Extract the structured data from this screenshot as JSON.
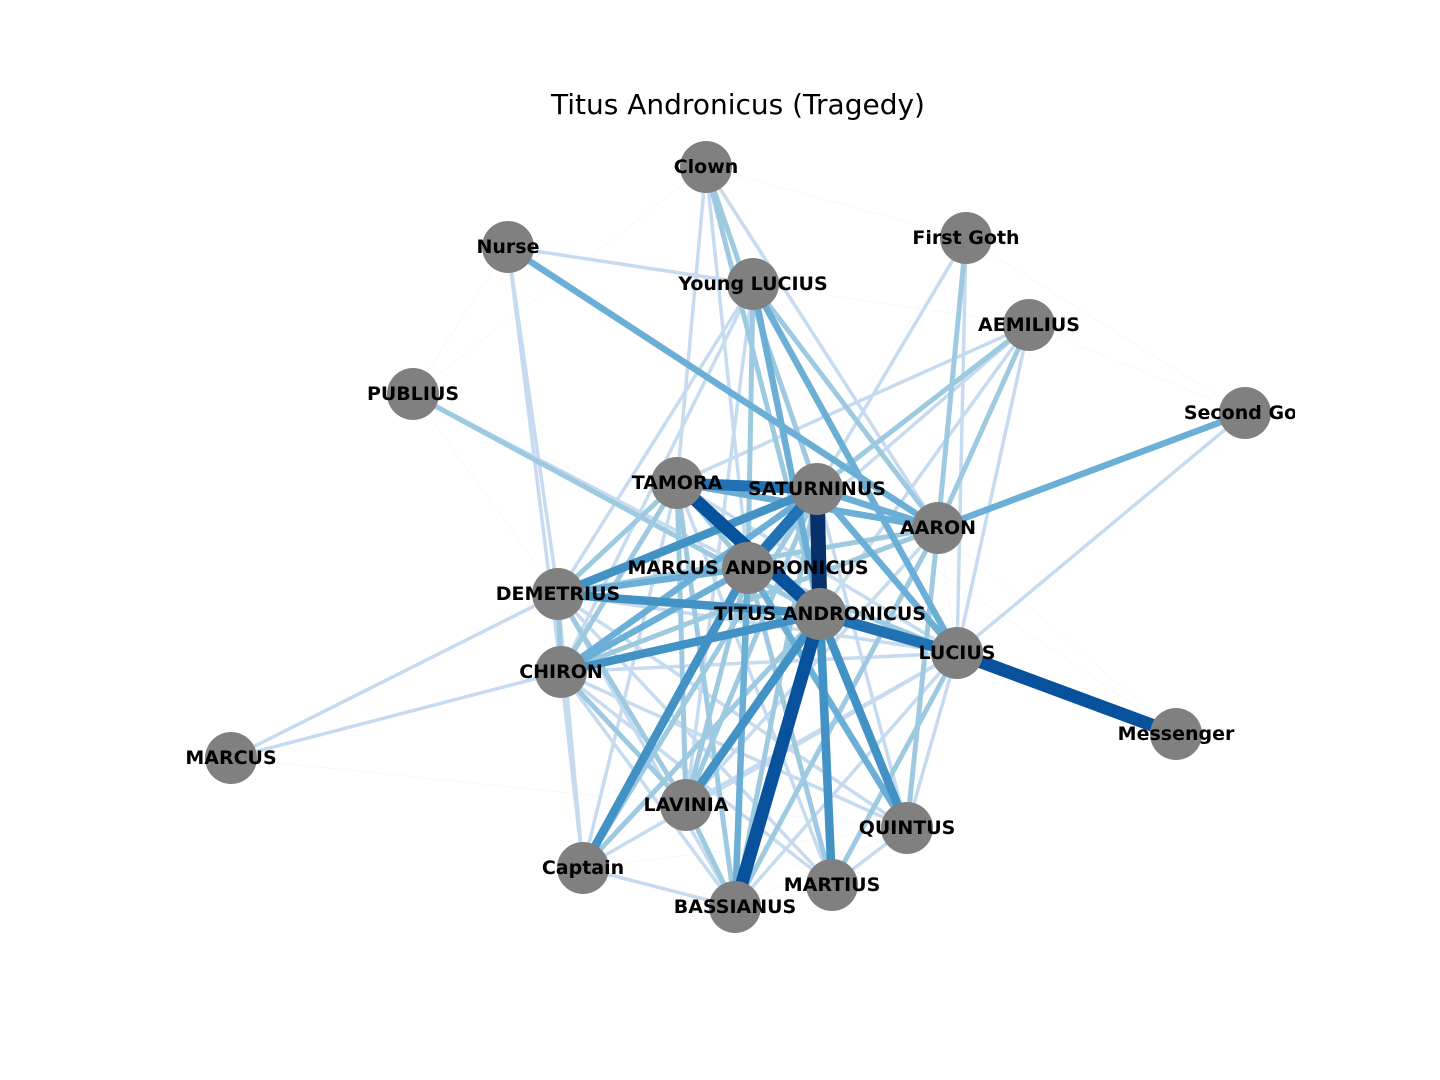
{
  "title": "Titus Andronicus (Tragedy)",
  "colors": {
    "node": "#808080",
    "label": "#000000",
    "edge_scale": [
      "#deebf7",
      "#c6dbef",
      "#9ecae1",
      "#6baed6",
      "#4292c6",
      "#2171b5",
      "#08519c",
      "#08306b"
    ]
  },
  "nodes": [
    {
      "id": "Clown",
      "label": "Clown"
    },
    {
      "id": "Nurse",
      "label": "Nurse"
    },
    {
      "id": "First Goth",
      "label": "First Goth"
    },
    {
      "id": "Young LUCIUS",
      "label": "Young LUCIUS"
    },
    {
      "id": "AEMILIUS",
      "label": "AEMILIUS"
    },
    {
      "id": "PUBLIUS",
      "label": "PUBLIUS"
    },
    {
      "id": "Second Goth",
      "label": "Second Got"
    },
    {
      "id": "TAMORA",
      "label": "TAMORA"
    },
    {
      "id": "SATURNINUS",
      "label": "SATURNINUS"
    },
    {
      "id": "AARON",
      "label": "AARON"
    },
    {
      "id": "MARCUS ANDRONICUS",
      "label": "MARCUS ANDRONICUS"
    },
    {
      "id": "DEMETRIUS",
      "label": "DEMETRIUS"
    },
    {
      "id": "TITUS ANDRONICUS",
      "label": "TITUS ANDRONICUS"
    },
    {
      "id": "LUCIUS",
      "label": "LUCIUS"
    },
    {
      "id": "CHIRON",
      "label": "CHIRON"
    },
    {
      "id": "Messenger",
      "label": "Messenger"
    },
    {
      "id": "MARCUS",
      "label": "MARCUS"
    },
    {
      "id": "LAVINIA",
      "label": "LAVINIA"
    },
    {
      "id": "QUINTUS",
      "label": "QUINTUS"
    },
    {
      "id": "Captain",
      "label": "Captain"
    },
    {
      "id": "MARTIUS",
      "label": "MARTIUS"
    },
    {
      "id": "BASSIANUS",
      "label": "BASSIANUS"
    }
  ],
  "edges": [
    {
      "source": "SATURNINUS",
      "target": "TITUS ANDRONICUS",
      "weight": 7
    },
    {
      "source": "TAMORA",
      "target": "TITUS ANDRONICUS",
      "weight": 6
    },
    {
      "source": "LUCIUS",
      "target": "Messenger",
      "weight": 6
    },
    {
      "source": "TITUS ANDRONICUS",
      "target": "BASSIANUS",
      "weight": 6
    },
    {
      "source": "TITUS ANDRONICUS",
      "target": "LUCIUS",
      "weight": 5
    },
    {
      "source": "SATURNINUS",
      "target": "MARCUS ANDRONICUS",
      "weight": 5
    },
    {
      "source": "TAMORA",
      "target": "SATURNINUS",
      "weight": 5
    },
    {
      "source": "DEMETRIUS",
      "target": "TITUS ANDRONICUS",
      "weight": 4
    },
    {
      "source": "MARCUS ANDRONICUS",
      "target": "Captain",
      "weight": 4
    },
    {
      "source": "TITUS ANDRONICUS",
      "target": "MARTIUS",
      "weight": 4
    },
    {
      "source": "CHIRON",
      "target": "TITUS ANDRONICUS",
      "weight": 4
    },
    {
      "source": "TITUS ANDRONICUS",
      "target": "LAVINIA",
      "weight": 4
    },
    {
      "source": "SATURNINUS",
      "target": "DEMETRIUS",
      "weight": 4
    },
    {
      "source": "TITUS ANDRONICUS",
      "target": "QUINTUS",
      "weight": 4
    },
    {
      "source": "Nurse",
      "target": "AARON",
      "weight": 3
    },
    {
      "source": "Young LUCIUS",
      "target": "LUCIUS",
      "weight": 3
    },
    {
      "source": "AARON",
      "target": "Second Goth",
      "weight": 3
    },
    {
      "source": "MARCUS ANDRONICUS",
      "target": "BASSIANUS",
      "weight": 3
    },
    {
      "source": "MARCUS ANDRONICUS",
      "target": "DEMETRIUS",
      "weight": 3
    },
    {
      "source": "MARCUS ANDRONICUS",
      "target": "CHIRON",
      "weight": 3
    },
    {
      "source": "MARCUS ANDRONICUS",
      "target": "QUINTUS",
      "weight": 3
    },
    {
      "source": "SATURNINUS",
      "target": "CHIRON",
      "weight": 3
    },
    {
      "source": "SATURNINUS",
      "target": "LUCIUS",
      "weight": 3
    },
    {
      "source": "TAMORA",
      "target": "AARON",
      "weight": 3
    },
    {
      "source": "SATURNINUS",
      "target": "AARON",
      "weight": 3
    },
    {
      "source": "Young LUCIUS",
      "target": "TITUS ANDRONICUS",
      "weight": 3
    },
    {
      "source": "PUBLIUS",
      "target": "TITUS ANDRONICUS",
      "weight": 2
    },
    {
      "source": "First Goth",
      "target": "AARON",
      "weight": 2
    },
    {
      "source": "AEMILIUS",
      "target": "AARON",
      "weight": 2
    },
    {
      "source": "AEMILIUS",
      "target": "SATURNINUS",
      "weight": 2
    },
    {
      "source": "Clown",
      "target": "SATURNINUS",
      "weight": 2
    },
    {
      "source": "Clown",
      "target": "TITUS ANDRONICUS",
      "weight": 2
    },
    {
      "source": "Young LUCIUS",
      "target": "AARON",
      "weight": 2
    },
    {
      "source": "Young LUCIUS",
      "target": "MARCUS ANDRONICUS",
      "weight": 2
    },
    {
      "source": "TAMORA",
      "target": "DEMETRIUS",
      "weight": 2
    },
    {
      "source": "TAMORA",
      "target": "CHIRON",
      "weight": 2
    },
    {
      "source": "TAMORA",
      "target": "MARCUS ANDRONICUS",
      "weight": 2
    },
    {
      "source": "TAMORA",
      "target": "LAVINIA",
      "weight": 2
    },
    {
      "source": "DEMETRIUS",
      "target": "CHIRON",
      "weight": 2
    },
    {
      "source": "DEMETRIUS",
      "target": "LAVINIA",
      "weight": 2
    },
    {
      "source": "CHIRON",
      "target": "LAVINIA",
      "weight": 2
    },
    {
      "source": "DEMETRIUS",
      "target": "AARON",
      "weight": 2
    },
    {
      "source": "CHIRON",
      "target": "AARON",
      "weight": 2
    },
    {
      "source": "LAVINIA",
      "target": "BASSIANUS",
      "weight": 2
    },
    {
      "source": "LAVINIA",
      "target": "MARCUS ANDRONICUS",
      "weight": 2
    },
    {
      "source": "MARCUS ANDRONICUS",
      "target": "LUCIUS",
      "weight": 2
    },
    {
      "source": "MARCUS ANDRONICUS",
      "target": "MARTIUS",
      "weight": 2
    },
    {
      "source": "SATURNINUS",
      "target": "BASSIANUS",
      "weight": 2
    },
    {
      "source": "SATURNINUS",
      "target": "LAVINIA",
      "weight": 2
    },
    {
      "source": "TAMORA",
      "target": "BASSIANUS",
      "weight": 2
    },
    {
      "source": "AARON",
      "target": "QUINTUS",
      "weight": 2
    },
    {
      "source": "AARON",
      "target": "BASSIANUS",
      "weight": 2
    },
    {
      "source": "Captain",
      "target": "TITUS ANDRONICUS",
      "weight": 2
    },
    {
      "source": "Captain",
      "target": "SATURNINUS",
      "weight": 2
    },
    {
      "source": "LUCIUS",
      "target": "MARTIUS",
      "weight": 2
    },
    {
      "source": "PUBLIUS",
      "target": "MARCUS ANDRONICUS",
      "weight": 1
    },
    {
      "source": "Second Goth",
      "target": "LUCIUS",
      "weight": 1
    },
    {
      "source": "First Goth",
      "target": "LUCIUS",
      "weight": 1
    },
    {
      "source": "First Goth",
      "target": "SATURNINUS",
      "weight": 1
    },
    {
      "source": "AEMILIUS",
      "target": "LUCIUS",
      "weight": 1
    },
    {
      "source": "AEMILIUS",
      "target": "TITUS ANDRONICUS",
      "weight": 1
    },
    {
      "source": "AEMILIUS",
      "target": "MARCUS ANDRONICUS",
      "weight": 1
    },
    {
      "source": "AEMILIUS",
      "target": "TAMORA",
      "weight": 1
    },
    {
      "source": "Clown",
      "target": "AARON",
      "weight": 1
    },
    {
      "source": "Clown",
      "target": "TAMORA",
      "weight": 1
    },
    {
      "source": "Clown",
      "target": "MARCUS ANDRONICUS",
      "weight": 1
    },
    {
      "source": "Nurse",
      "target": "DEMETRIUS",
      "weight": 1
    },
    {
      "source": "Nurse",
      "target": "CHIRON",
      "weight": 1
    },
    {
      "source": "Nurse",
      "target": "Young LUCIUS",
      "weight": 1
    },
    {
      "source": "Young LUCIUS",
      "target": "LAVINIA",
      "weight": 1
    },
    {
      "source": "Young LUCIUS",
      "target": "DEMETRIUS",
      "weight": 1
    },
    {
      "source": "Young LUCIUS",
      "target": "CHIRON",
      "weight": 1
    },
    {
      "source": "MARCUS",
      "target": "DEMETRIUS",
      "weight": 1
    },
    {
      "source": "MARCUS",
      "target": "CHIRON",
      "weight": 1
    },
    {
      "source": "LUCIUS",
      "target": "QUINTUS",
      "weight": 1
    },
    {
      "source": "LUCIUS",
      "target": "Captain",
      "weight": 1
    },
    {
      "source": "LUCIUS",
      "target": "BASSIANUS",
      "weight": 1
    },
    {
      "source": "LUCIUS",
      "target": "CHIRON",
      "weight": 1
    },
    {
      "source": "LUCIUS",
      "target": "DEMETRIUS",
      "weight": 1
    },
    {
      "source": "LUCIUS",
      "target": "TAMORA",
      "weight": 1
    },
    {
      "source": "Captain",
      "target": "BASSIANUS",
      "weight": 1
    },
    {
      "source": "Captain",
      "target": "DEMETRIUS",
      "weight": 1
    },
    {
      "source": "Captain",
      "target": "CHIRON",
      "weight": 1
    },
    {
      "source": "Captain",
      "target": "TAMORA",
      "weight": 1
    },
    {
      "source": "QUINTUS",
      "target": "MARTIUS",
      "weight": 1
    },
    {
      "source": "QUINTUS",
      "target": "SATURNINUS",
      "weight": 1
    },
    {
      "source": "MARTIUS",
      "target": "SATURNINUS",
      "weight": 1
    },
    {
      "source": "MARTIUS",
      "target": "TAMORA",
      "weight": 1
    },
    {
      "source": "BASSIANUS",
      "target": "DEMETRIUS",
      "weight": 1
    },
    {
      "source": "BASSIANUS",
      "target": "CHIRON",
      "weight": 1
    },
    {
      "source": "LAVINIA",
      "target": "AARON",
      "weight": 1
    },
    {
      "source": "LAVINIA",
      "target": "LUCIUS",
      "weight": 1
    },
    {
      "source": "DEMETRIUS",
      "target": "QUINTUS",
      "weight": 1
    },
    {
      "source": "DEMETRIUS",
      "target": "MARTIUS",
      "weight": 1
    },
    {
      "source": "CHIRON",
      "target": "QUINTUS",
      "weight": 1
    },
    {
      "source": "CHIRON",
      "target": "MARTIUS",
      "weight": 1
    },
    {
      "source": "First Goth",
      "target": "Second Goth",
      "weight": 0
    },
    {
      "source": "AEMILIUS",
      "target": "Second Goth",
      "weight": 0
    },
    {
      "source": "First Goth",
      "target": "Clown",
      "weight": 0
    },
    {
      "source": "Clown",
      "target": "PUBLIUS",
      "weight": 0
    },
    {
      "source": "Young LUCIUS",
      "target": "AEMILIUS",
      "weight": 0
    },
    {
      "source": "PUBLIUS",
      "target": "DEMETRIUS",
      "weight": 0
    },
    {
      "source": "PUBLIUS",
      "target": "LUCIUS",
      "weight": 0
    },
    {
      "source": "LUCIUS",
      "target": "AARON",
      "weight": 0
    },
    {
      "source": "AARON",
      "target": "Messenger",
      "weight": 0
    },
    {
      "source": "Messenger",
      "target": "SATURNINUS",
      "weight": 0
    },
    {
      "source": "QUINTUS",
      "target": "BASSIANUS",
      "weight": 0
    },
    {
      "source": "MARTIUS",
      "target": "BASSIANUS",
      "weight": 0
    },
    {
      "source": "Captain",
      "target": "LAVINIA",
      "weight": 0
    },
    {
      "source": "Captain",
      "target": "QUINTUS",
      "weight": 0
    },
    {
      "source": "LAVINIA",
      "target": "QUINTUS",
      "weight": 0
    },
    {
      "source": "LAVINIA",
      "target": "MARTIUS",
      "weight": 0
    },
    {
      "source": "CHIRON",
      "target": "LUCIUS",
      "weight": 0
    },
    {
      "source": "MARCUS",
      "target": "LAVINIA",
      "weight": 0
    },
    {
      "source": "Nurse",
      "target": "PUBLIUS",
      "weight": 0
    },
    {
      "source": "First Goth",
      "target": "MARCUS ANDRONICUS",
      "weight": 0
    }
  ]
}
